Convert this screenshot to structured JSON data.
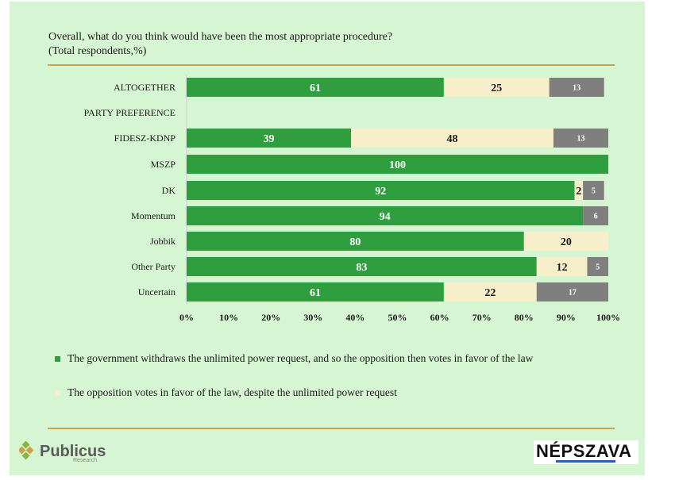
{
  "title_line1": "Overall, what do you think would have been the most appropriate procedure?",
  "title_line2": "(Total respondents,%)",
  "chart_data": {
    "type": "bar",
    "orientation": "horizontal",
    "stacked": true,
    "categories": [
      "ALTOGETHER",
      "PARTY PREFERENCE",
      "FIDESZ-KDNP",
      "MSZP",
      "DK",
      "Momentum",
      "Jobbik",
      "Other Party",
      "Uncertain"
    ],
    "series": [
      {
        "name": "The government withdraws the unlimited power request, and so the opposition then votes in favor of the law",
        "color": "#2e9e3e",
        "values": [
          61,
          null,
          39,
          100,
          92,
          94,
          80,
          83,
          61
        ]
      },
      {
        "name": "The opposition votes in favor of the law, despite the unlimited  power request",
        "color": "#f7efc9",
        "values": [
          25,
          null,
          48,
          null,
          2,
          null,
          20,
          12,
          22
        ]
      },
      {
        "name": "",
        "color": "#7f7f7f",
        "values": [
          13,
          null,
          13,
          null,
          5,
          6,
          null,
          5,
          17
        ]
      }
    ],
    "xlim": [
      0,
      100
    ],
    "xticks": [
      "0%",
      "10%",
      "20%",
      "30%",
      "40%",
      "50%",
      "60%",
      "70%",
      "80%",
      "90%",
      "100%"
    ],
    "legend_position": "bottom",
    "grid": false
  },
  "logos": {
    "publicus": "Publicus",
    "publicus_sub": "Research",
    "nepszava": "NÉPSZAVA"
  }
}
